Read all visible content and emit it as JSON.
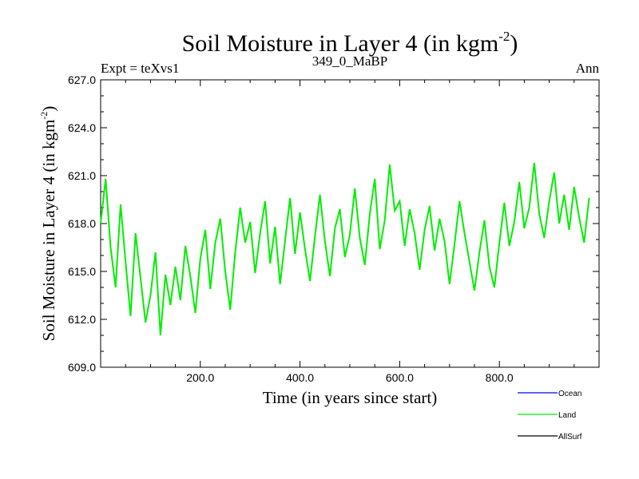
{
  "chart_data": {
    "type": "line",
    "title": "Soil Moisture in Layer 4 (in kgm",
    "title_superscript": "-2",
    "title_suffix": ")",
    "subtitle_left": "Expt = teXvs1",
    "subtitle_center": "349_0_MaBP",
    "subtitle_right": "Ann",
    "xlabel": "Time (in years since start)",
    "ylabel": "Soil Moisture in Layer 4 (in kgm",
    "ylabel_superscript": "-2",
    "ylabel_suffix": ")",
    "xlim": [
      0,
      1000
    ],
    "ylim": [
      609,
      627
    ],
    "x_ticks": [
      200,
      400,
      600,
      800
    ],
    "x_tick_labels": [
      "200.0",
      "400.0",
      "600.0",
      "800.0"
    ],
    "y_ticks": [
      609,
      612,
      615,
      618,
      621,
      624,
      627
    ],
    "y_tick_labels": [
      "609.0",
      "612.0",
      "615.0",
      "618.0",
      "621.0",
      "624.0",
      "627.0"
    ],
    "legend": {
      "placement": "bottom-right",
      "entries": [
        {
          "name": "Ocean",
          "color": "#0000ff"
        },
        {
          "name": "Land",
          "color": "#00ee00"
        },
        {
          "name": "AllSurf",
          "color": "#000000"
        }
      ]
    },
    "series": [
      {
        "name": "Land",
        "color": "#00ee00",
        "x_start": 0,
        "x_step": 10,
        "values": [
          618.0,
          620.8,
          616.5,
          614.0,
          619.2,
          615.6,
          612.2,
          617.4,
          614.6,
          611.8,
          613.5,
          616.2,
          611.0,
          614.8,
          612.9,
          615.3,
          613.2,
          616.6,
          614.7,
          612.4,
          615.8,
          617.6,
          613.9,
          616.8,
          618.3,
          615.0,
          612.6,
          616.2,
          619.0,
          616.8,
          618.1,
          614.9,
          617.4,
          619.4,
          615.5,
          617.8,
          614.2,
          616.9,
          619.6,
          616.1,
          618.7,
          616.4,
          614.4,
          617.2,
          619.8,
          616.9,
          614.7,
          617.7,
          618.9,
          615.9,
          617.3,
          620.2,
          617.1,
          615.4,
          618.6,
          620.8,
          616.4,
          618.2,
          621.7,
          618.8,
          619.4,
          616.6,
          618.9,
          617.4,
          615.1,
          617.6,
          619.1,
          616.3,
          618.3,
          616.9,
          614.2,
          616.7,
          619.4,
          617.4,
          615.6,
          613.8,
          616.2,
          618.2,
          615.3,
          614.0,
          616.8,
          619.3,
          616.6,
          618.1,
          620.6,
          617.7,
          619.0,
          621.8,
          618.6,
          617.1,
          619.4,
          621.2,
          618.0,
          619.8,
          617.6,
          620.3,
          618.4,
          616.8,
          619.6
        ]
      }
    ]
  }
}
